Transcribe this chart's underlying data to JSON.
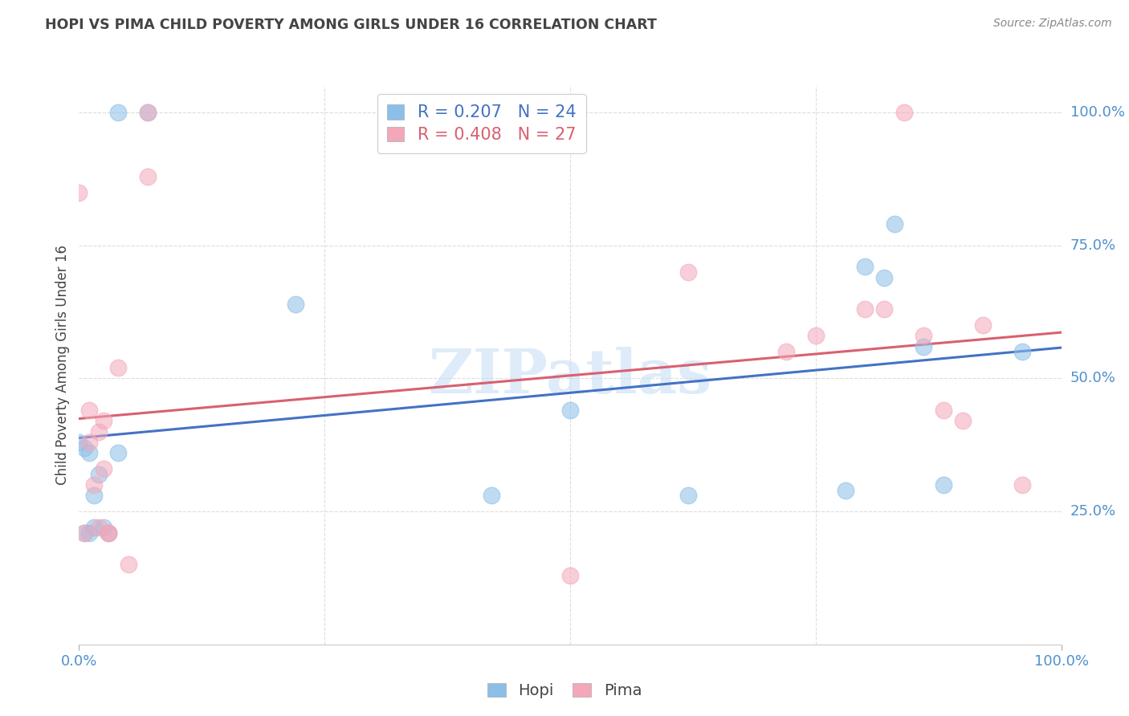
{
  "title": "HOPI VS PIMA CHILD POVERTY AMONG GIRLS UNDER 16 CORRELATION CHART",
  "source": "Source: ZipAtlas.com",
  "ylabel": "Child Poverty Among Girls Under 16",
  "watermark": "ZIPatlas",
  "xlim": [
    0.0,
    1.0
  ],
  "ylim": [
    0.0,
    1.05
  ],
  "ytick_labels": [
    "25.0%",
    "50.0%",
    "75.0%",
    "100.0%"
  ],
  "ytick_positions": [
    0.25,
    0.5,
    0.75,
    1.0
  ],
  "hopi_color": "#8BBFE8",
  "pima_color": "#F4A7B9",
  "hopi_R": "0.207",
  "hopi_N": "24",
  "pima_R": "0.408",
  "pima_N": "27",
  "hopi_x": [
    0.04,
    0.07,
    0.0,
    0.005,
    0.005,
    0.01,
    0.01,
    0.015,
    0.015,
    0.02,
    0.025,
    0.03,
    0.04,
    0.22,
    0.42,
    0.5,
    0.62,
    0.78,
    0.8,
    0.82,
    0.83,
    0.86,
    0.88,
    0.96
  ],
  "hopi_y": [
    1.0,
    1.0,
    0.38,
    0.37,
    0.21,
    0.21,
    0.36,
    0.22,
    0.28,
    0.32,
    0.22,
    0.21,
    0.36,
    0.64,
    0.28,
    0.44,
    0.28,
    0.29,
    0.71,
    0.69,
    0.79,
    0.56,
    0.3,
    0.55
  ],
  "pima_x": [
    0.0,
    0.005,
    0.01,
    0.01,
    0.015,
    0.02,
    0.02,
    0.025,
    0.025,
    0.03,
    0.03,
    0.04,
    0.05,
    0.07,
    0.07,
    0.5,
    0.62,
    0.72,
    0.75,
    0.8,
    0.82,
    0.84,
    0.86,
    0.88,
    0.9,
    0.92,
    0.96
  ],
  "pima_y": [
    0.85,
    0.21,
    0.38,
    0.44,
    0.3,
    0.22,
    0.4,
    0.33,
    0.42,
    0.21,
    0.21,
    0.52,
    0.15,
    0.88,
    1.0,
    0.13,
    0.7,
    0.55,
    0.58,
    0.63,
    0.63,
    1.0,
    0.58,
    0.44,
    0.42,
    0.6,
    0.3
  ],
  "background_color": "#ffffff",
  "grid_color": "#dddddd",
  "tick_color": "#5090CC",
  "title_color": "#444444",
  "hopi_line_color": "#4472C4",
  "pima_line_color": "#D96070"
}
